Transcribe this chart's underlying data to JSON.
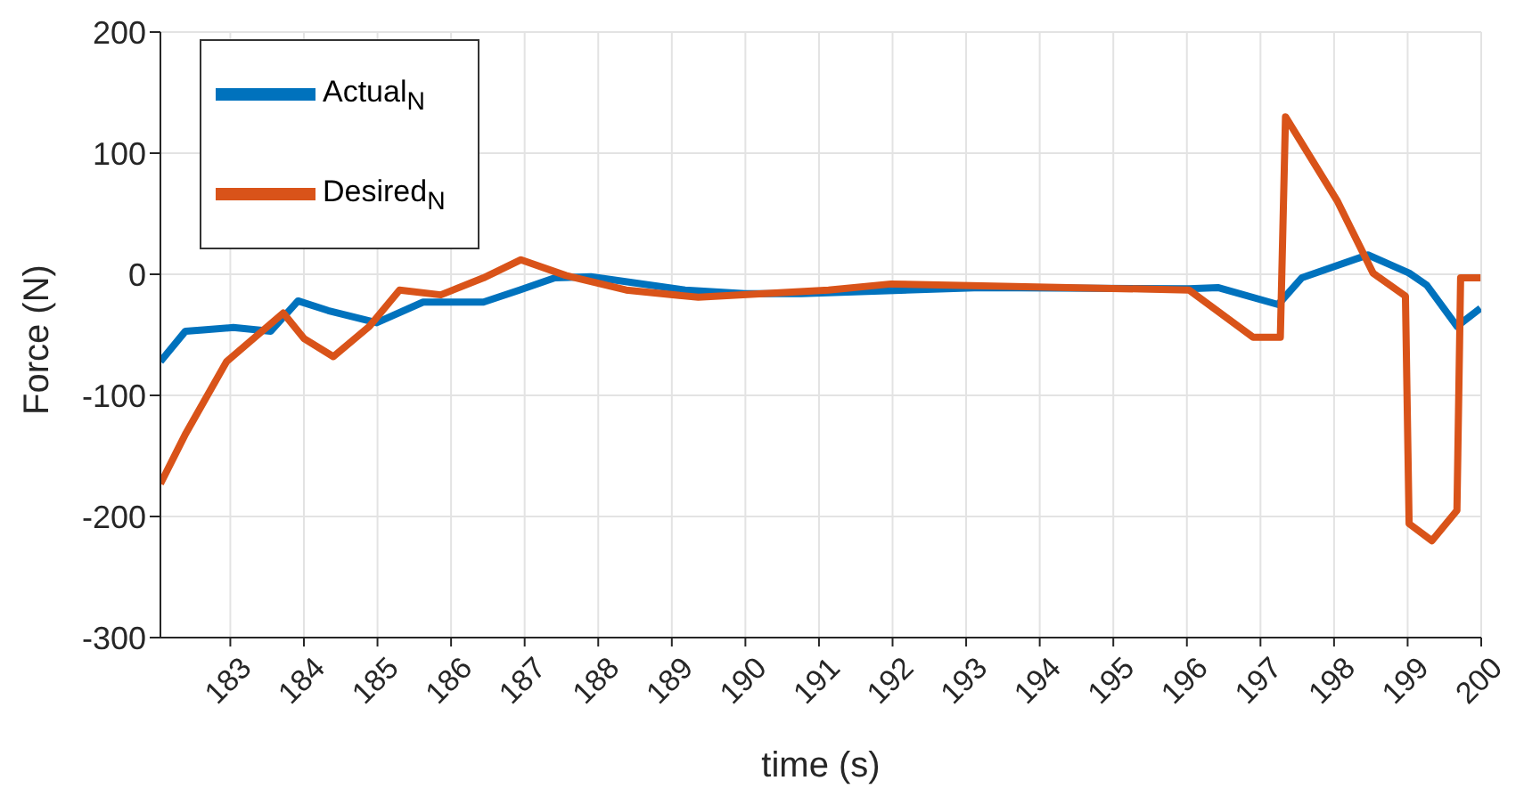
{
  "chart_data": {
    "type": "line",
    "xlabel": "time (s)",
    "ylabel": "Force (N)",
    "xlim": [
      182.05,
      200
    ],
    "xticks": [
      183,
      184,
      185,
      186,
      187,
      188,
      189,
      190,
      191,
      192,
      193,
      194,
      195,
      196,
      197,
      198,
      199,
      200
    ],
    "ylim": [
      -300,
      200
    ],
    "yticks": [
      -300,
      -200,
      -100,
      0,
      100,
      200
    ],
    "grid": true,
    "legend": "top left",
    "line_style": "solid",
    "marker": "none",
    "series": [
      {
        "name": "Actual$_{N}$",
        "color": "#0072bd",
        "x": [
          182.05,
          182.39,
          182.63,
          183.04,
          183.55,
          183.92,
          184.33,
          184.99,
          185.62,
          186.44,
          186.93,
          187.41,
          187.9,
          189.18,
          189.99,
          190.76,
          193.2,
          196.03,
          196.42,
          197.24,
          197.56,
          198.46,
          199.02,
          199.26,
          199.67,
          199.99
        ],
        "values": [
          -72,
          -47,
          -46,
          -44,
          -47,
          -22,
          -30,
          -40,
          -23,
          -23,
          -13,
          -3,
          -2,
          -13,
          -16,
          -16,
          -11,
          -12,
          -11,
          -25,
          -3,
          16,
          1,
          -9,
          -43,
          -28
        ]
      },
      {
        "name": "Desired$_{N}$",
        "color": "#d95319",
        "x": [
          182.05,
          182.39,
          182.95,
          183.72,
          184.0,
          184.4,
          184.89,
          185.3,
          185.86,
          186.44,
          186.95,
          187.56,
          188.38,
          189.36,
          191.13,
          191.98,
          196.03,
          196.9,
          197.27,
          197.34,
          198.04,
          198.53,
          198.97,
          199.02,
          199.33,
          199.67,
          199.72,
          199.99
        ],
        "values": [
          -173,
          -132,
          -72,
          -32,
          -53,
          -68,
          -43,
          -13,
          -17,
          -3,
          12,
          -1,
          -13,
          -19,
          -13,
          -8,
          -13,
          -52,
          -52,
          130,
          61,
          1,
          -18,
          -206,
          -220,
          -195,
          -3,
          -3
        ]
      }
    ]
  }
}
